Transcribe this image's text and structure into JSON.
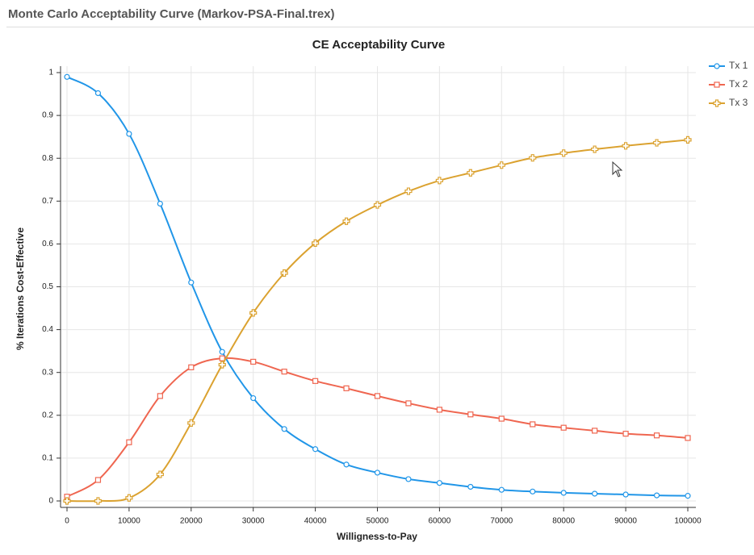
{
  "header": {
    "title": "Monte Carlo Acceptability Curve (Markov-PSA-Final.trex)"
  },
  "chart_data": {
    "type": "line",
    "title": "CE Acceptability Curve",
    "x_label": "Willigness-to-Pay",
    "y_label": "% Iterations Cost-Effective",
    "x": [
      0,
      5000,
      10000,
      15000,
      20000,
      25000,
      30000,
      35000,
      40000,
      45000,
      50000,
      55000,
      60000,
      65000,
      70000,
      75000,
      80000,
      85000,
      90000,
      95000,
      100000
    ],
    "series": [
      {
        "name": "Tx 1",
        "color": "#2196e8",
        "marker": "circle",
        "values": [
          0.99,
          0.952,
          0.857,
          0.694,
          0.51,
          0.348,
          0.24,
          0.168,
          0.121,
          0.085,
          0.066,
          0.051,
          0.042,
          0.033,
          0.026,
          0.022,
          0.019,
          0.017,
          0.015,
          0.013,
          0.012
        ]
      },
      {
        "name": "Tx 2",
        "color": "#ef6650",
        "marker": "square",
        "values": [
          0.01,
          0.049,
          0.137,
          0.245,
          0.312,
          0.333,
          0.325,
          0.302,
          0.28,
          0.263,
          0.245,
          0.228,
          0.213,
          0.202,
          0.192,
          0.179,
          0.171,
          0.164,
          0.157,
          0.153,
          0.147
        ]
      },
      {
        "name": "Tx 3",
        "color": "#dba230",
        "marker": "cross",
        "values": [
          0,
          0,
          0.007,
          0.062,
          0.182,
          0.318,
          0.439,
          0.532,
          0.602,
          0.653,
          0.691,
          0.723,
          0.748,
          0.766,
          0.784,
          0.801,
          0.812,
          0.821,
          0.829,
          0.836,
          0.843
        ]
      }
    ],
    "xlim": [
      0,
      100000
    ],
    "xticks": [
      0,
      10000,
      20000,
      30000,
      40000,
      50000,
      60000,
      70000,
      80000,
      90000,
      100000
    ],
    "ylim": [
      0,
      1
    ],
    "yticks": [
      0,
      0.1,
      0.2,
      0.3,
      0.4,
      0.5,
      0.6,
      0.7,
      0.8,
      0.9,
      1
    ],
    "grid": true,
    "smooth": true,
    "legend": "top-right"
  }
}
